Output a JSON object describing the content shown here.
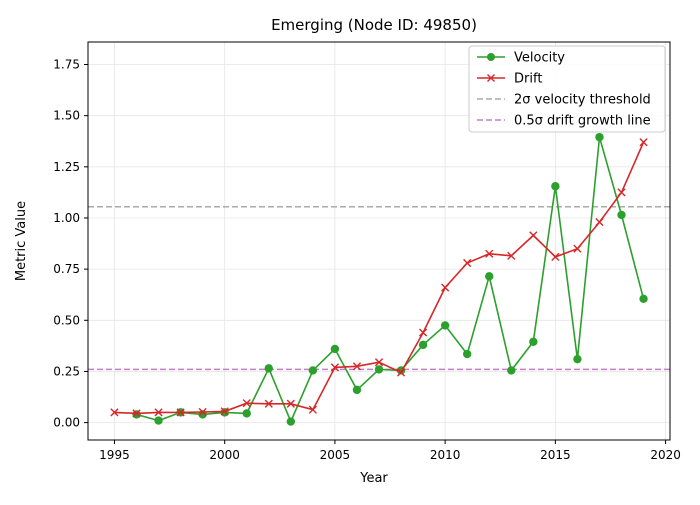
{
  "chart_data": {
    "type": "line",
    "title": "Emerging (Node ID: 49850)",
    "xlabel": "Year",
    "ylabel": "Metric Value",
    "xlim": [
      1993.8,
      2020.2
    ],
    "ylim": [
      -0.085,
      1.86
    ],
    "xticks": [
      1995,
      2000,
      2005,
      2010,
      2015,
      2020
    ],
    "xtick_labels": [
      "1995",
      "2000",
      "2005",
      "2010",
      "2015",
      "2020"
    ],
    "yticks": [
      0.0,
      0.25,
      0.5,
      0.75,
      1.0,
      1.25,
      1.5,
      1.75
    ],
    "ytick_labels": [
      "0.00",
      "0.25",
      "0.50",
      "0.75",
      "1.00",
      "1.25",
      "1.50",
      "1.75"
    ],
    "grid": true,
    "legend_position": "top-right",
    "series": [
      {
        "name": "Velocity",
        "color": "#2ca02c",
        "marker": "circle",
        "x": [
          1996,
          1997,
          1998,
          1999,
          2000,
          2001,
          2002,
          2003,
          2004,
          2005,
          2006,
          2007,
          2008,
          2009,
          2010,
          2011,
          2012,
          2013,
          2014,
          2015,
          2016,
          2017,
          2018,
          2019
        ],
        "values": [
          0.04,
          0.01,
          0.05,
          0.04,
          0.05,
          0.045,
          0.265,
          0.005,
          0.255,
          0.36,
          0.16,
          0.26,
          0.255,
          0.38,
          0.475,
          0.335,
          0.715,
          0.255,
          0.395,
          1.155,
          0.31,
          1.395,
          1.015,
          0.605
        ]
      },
      {
        "name": "Drift",
        "color": "#d62728",
        "marker": "x",
        "x": [
          1995,
          1996,
          1997,
          1998,
          1999,
          2000,
          2001,
          2002,
          2003,
          2004,
          2005,
          2006,
          2007,
          2008,
          2009,
          2010,
          2011,
          2012,
          2013,
          2014,
          2015,
          2016,
          2017,
          2018,
          2019
        ],
        "values": [
          0.05,
          0.045,
          0.05,
          0.05,
          0.052,
          0.055,
          0.095,
          0.092,
          0.092,
          0.063,
          0.27,
          0.275,
          0.295,
          0.245,
          0.44,
          0.66,
          0.78,
          0.825,
          0.815,
          0.915,
          0.81,
          0.85,
          0.98,
          1.125,
          1.37
        ]
      }
    ],
    "reference_lines": [
      {
        "name": "2σ velocity threshold",
        "value": 1.055,
        "color": "#aaaaaa",
        "style": "dashed"
      },
      {
        "name": "0.5σ drift growth line",
        "value": 0.26,
        "color": "#c77cc7",
        "style": "dashed"
      }
    ]
  }
}
